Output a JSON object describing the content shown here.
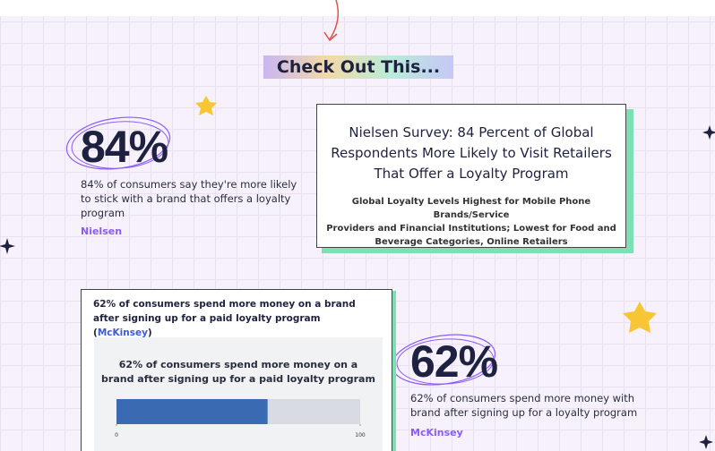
{
  "heading": "Check Out This...",
  "stat1": {
    "value": "84%",
    "description": "84% of consumers say they're more likely to stick with a brand that offers a loyalty program",
    "source": "Nielsen"
  },
  "survey": {
    "title": [
      "Nielsen Survey: 84 Percent of Global",
      "Respondents More Likely to Visit Retailers",
      "That Offer a Loyalty Program"
    ],
    "subtitle": [
      "Global Loyalty Levels Highest for Mobile Phone Brands/Service",
      "Providers and Financial Institutions; Lowest for Food and",
      "Beverage Categories, Online Retailers"
    ]
  },
  "chart_card": {
    "title_parts": [
      "62% of consumers spend more money on a brand after signing up for a paid loyalty program (",
      "McKinsey",
      ")"
    ],
    "chart": {
      "title": [
        "62% of consumers spend more money on a",
        "brand after signing up for a paid loyalty program"
      ],
      "value": 62,
      "xlim": [
        0,
        100
      ],
      "xticks": [
        0,
        100
      ],
      "color": "#3a6ab1",
      "track_color": "#d8dce2"
    }
  },
  "stat2": {
    "value": "62%",
    "description": "62% of consumers spend more money with brand after signing up for a loyalty program",
    "source": "McKinsey"
  }
}
